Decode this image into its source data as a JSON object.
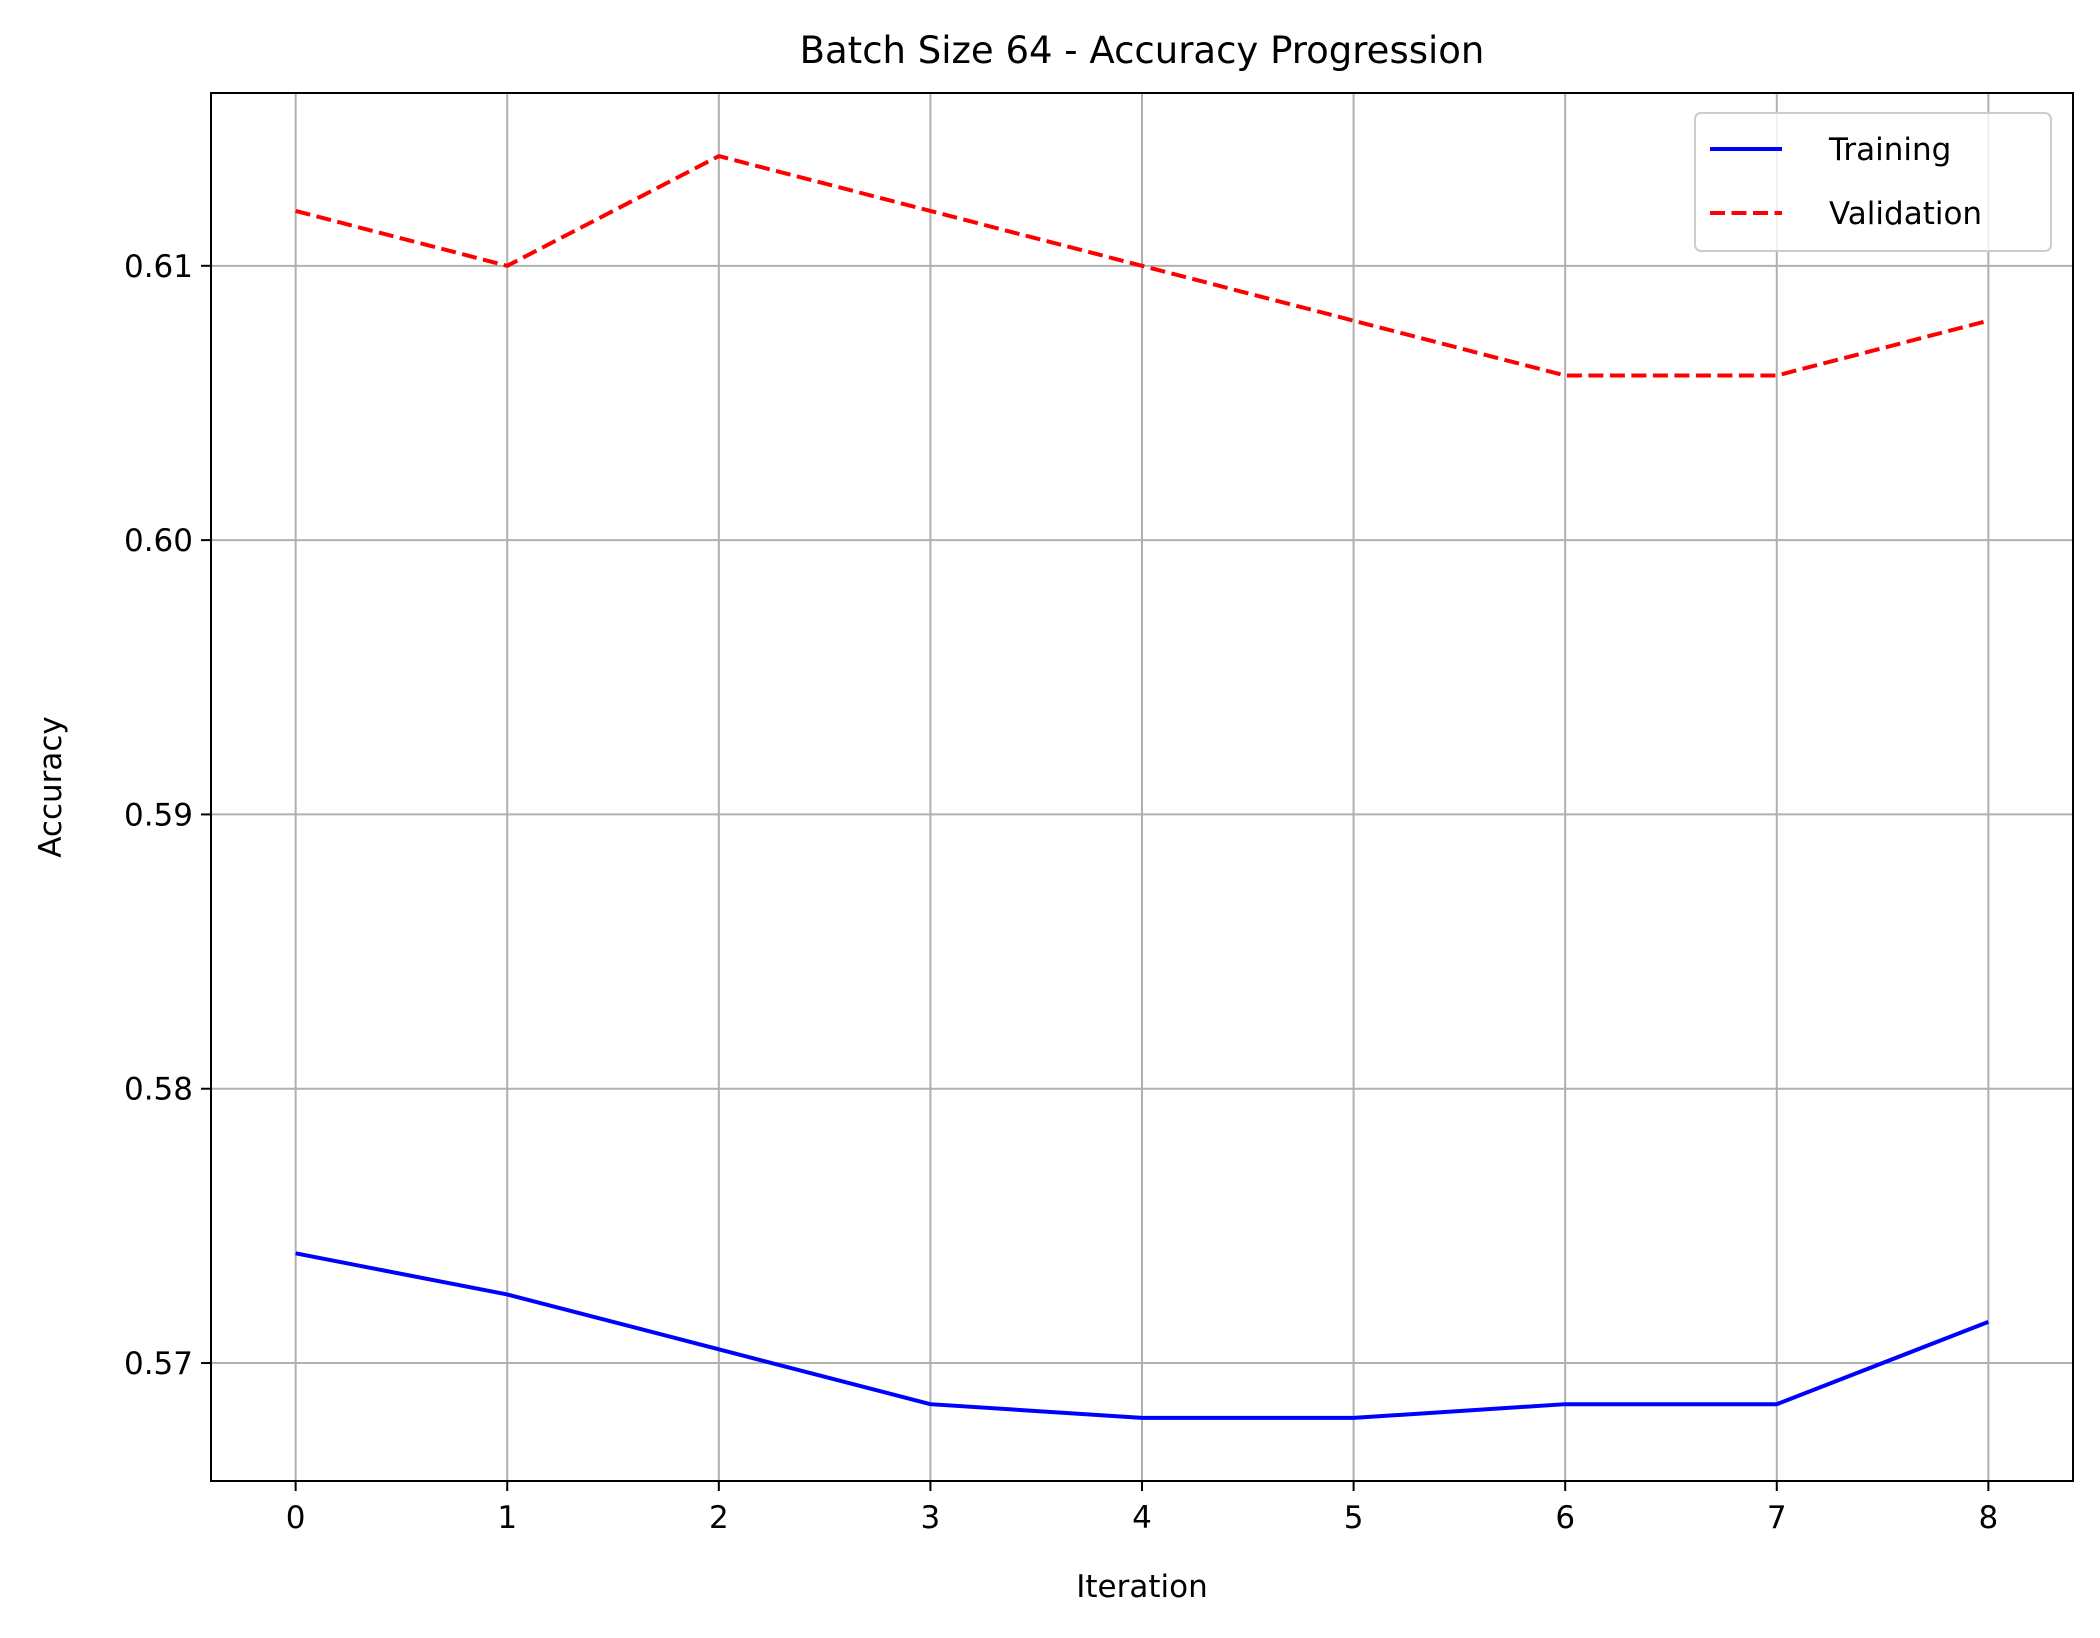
{
  "chart_data": {
    "type": "line",
    "title": "Batch Size 64 - Accuracy Progression",
    "xlabel": "Iteration",
    "ylabel": "Accuracy",
    "x": [
      0,
      1,
      2,
      3,
      4,
      5,
      6,
      7,
      8
    ],
    "xticks": [
      "0",
      "1",
      "2",
      "3",
      "4",
      "5",
      "6",
      "7",
      "8"
    ],
    "yticks": [
      "0.57",
      "0.58",
      "0.59",
      "0.60",
      "0.61"
    ],
    "ytick_values": [
      0.57,
      0.58,
      0.59,
      0.6,
      0.61
    ],
    "xlim": [
      -0.4,
      8.4
    ],
    "ylim": [
      0.5657,
      0.6163
    ],
    "grid": true,
    "legend_position": "top-right",
    "series": [
      {
        "name": "Training",
        "color": "#0000ff",
        "style": "solid",
        "values": [
          0.574,
          0.5725,
          0.5705,
          0.5685,
          0.568,
          0.568,
          0.5685,
          0.5685,
          0.5715
        ]
      },
      {
        "name": "Validation",
        "color": "#ff0000",
        "style": "dashed",
        "values": [
          0.612,
          0.61,
          0.614,
          0.612,
          0.61,
          0.608,
          0.606,
          0.606,
          0.608
        ]
      }
    ]
  }
}
